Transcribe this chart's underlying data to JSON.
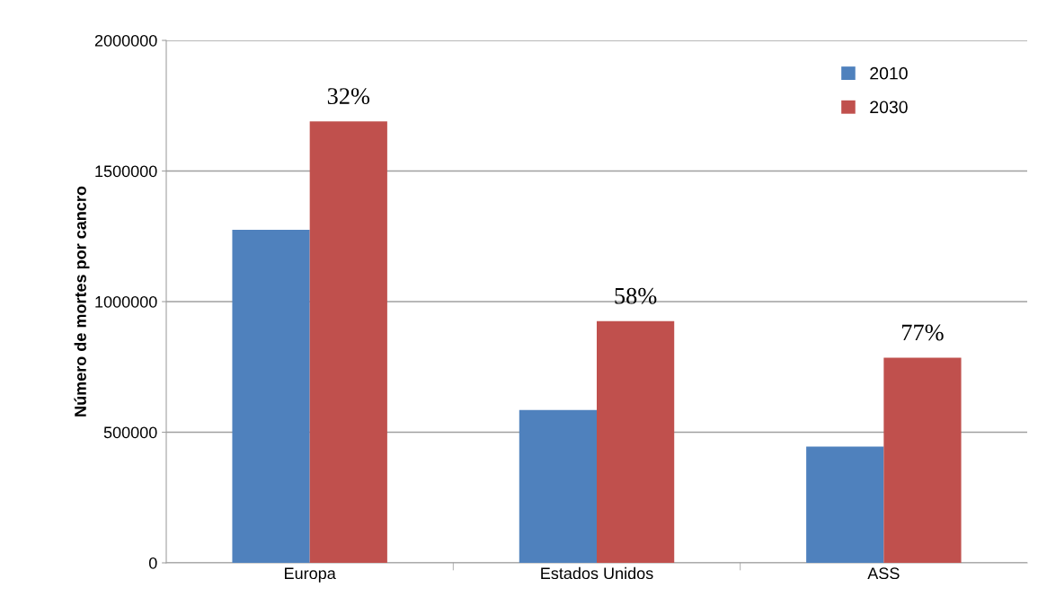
{
  "chart_data": {
    "type": "bar",
    "ylabel": "Número de mortes por cancro",
    "categories": [
      "Europa",
      "Estados Unidos",
      "ASS"
    ],
    "series": [
      {
        "name": "2010",
        "color": "#4f81bd",
        "values": [
          1275000,
          585000,
          445000
        ]
      },
      {
        "name": "2030",
        "color": "#c0504d",
        "values": [
          1690000,
          925000,
          785000
        ]
      }
    ],
    "annotations": [
      {
        "text": "32%",
        "x": "Europa",
        "y": 1690000
      },
      {
        "text": "58%",
        "x": "Estados Unidos",
        "y": 925000
      },
      {
        "text": "77%",
        "x": "ASS",
        "y": 785000
      }
    ],
    "ylim": [
      0,
      2000000
    ],
    "yticks": [
      0,
      500000,
      1000000,
      1500000,
      2000000
    ],
    "grid": "y",
    "legend": "top right"
  }
}
